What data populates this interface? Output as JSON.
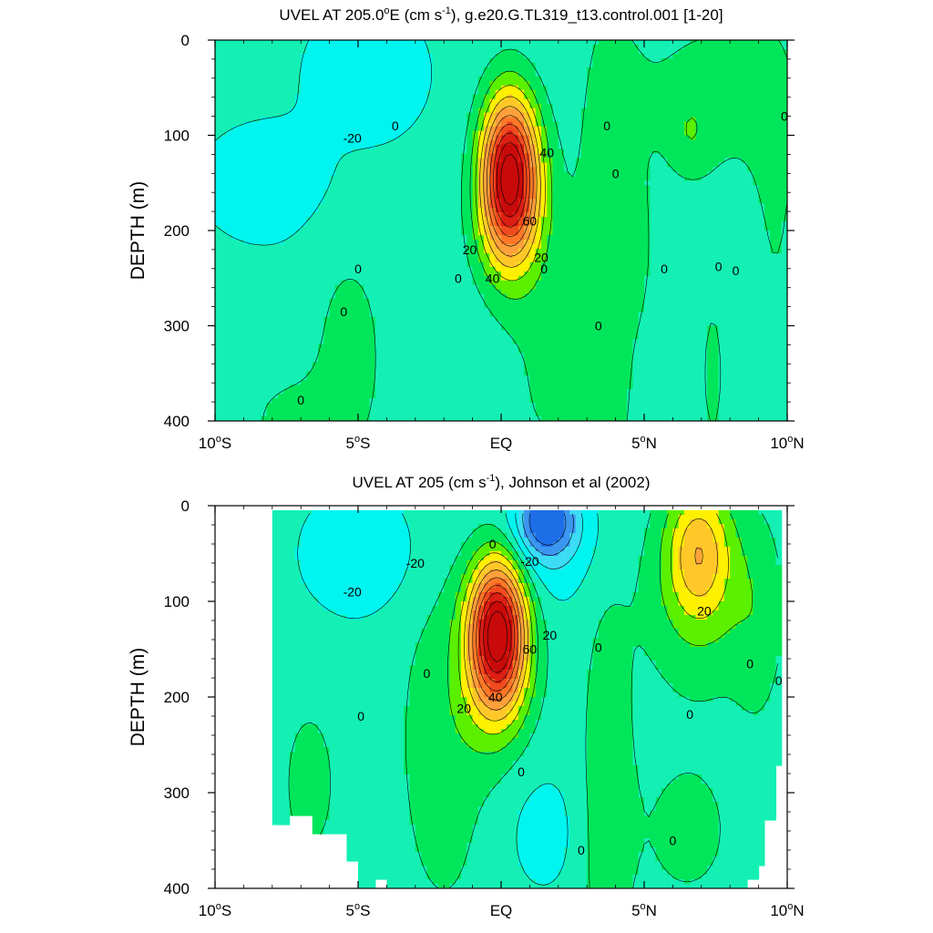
{
  "palette": {
    "neg_40": "#1e6ee8",
    "neg_30": "#3c96f0",
    "neg_20": "#3cdcf5",
    "neg_10": "#00f5f0",
    "zero": "#14f0b4",
    "pos_10": "#00e65a",
    "pos_20": "#5af000",
    "pos_30": "#fff000",
    "pos_40": "#ffc828",
    "pos_50": "#ffa03c",
    "pos_60": "#ff7828",
    "pos_70": "#f04b1e",
    "pos_80": "#dc1e14",
    "pos_90": "#c80a0a"
  },
  "chart_data": [
    {
      "type": "contour",
      "title_main": "UVEL AT 205.0",
      "title_sup": "o",
      "title_rest": "E (cm s",
      "title_sup2": "-1",
      "title_end": "), g.e20.G.TL319_t13.control.001 [1-20]",
      "ylabel": "DEPTH (m)",
      "xlim": [
        -10,
        10
      ],
      "ylim": [
        400,
        0
      ],
      "xticks": [
        {
          "v": -10,
          "main": "10",
          "deg": "o",
          "hemi": "S"
        },
        {
          "v": -5,
          "main": "5",
          "deg": "o",
          "hemi": "S"
        },
        {
          "v": 0,
          "main": "EQ",
          "deg": "",
          "hemi": ""
        },
        {
          "v": 5,
          "main": "5",
          "deg": "o",
          "hemi": "N"
        },
        {
          "v": 10,
          "main": "10",
          "deg": "o",
          "hemi": "N"
        }
      ],
      "yticks": [
        0,
        100,
        200,
        300,
        400
      ],
      "levels": [
        -40,
        -30,
        -20,
        -10,
        0,
        10,
        20,
        30,
        40,
        50,
        60,
        70,
        80,
        90
      ],
      "data_region": [
        {
          "x": -10,
          "top": 0,
          "bottom": 400
        },
        {
          "x": 10,
          "top": 0,
          "bottom": 400
        }
      ],
      "field": [
        {
          "kind": "bg",
          "v": -8
        },
        {
          "kind": "gauss",
          "v": 98,
          "x": 0.3,
          "y": 140,
          "sx": 0.7,
          "sy": 58
        },
        {
          "kind": "gauss",
          "v": 15,
          "x": 0.3,
          "y": 200,
          "sx": 1.0,
          "sy": 55
        },
        {
          "kind": "gauss",
          "v": -12,
          "x": -4.7,
          "y": 35,
          "sx": 1.2,
          "sy": 40
        },
        {
          "kind": "gauss",
          "v": -6,
          "x": -8,
          "y": 150,
          "sx": 1.8,
          "sy": 45
        },
        {
          "kind": "gauss",
          "v": 12,
          "x": -5.3,
          "y": 330,
          "sx": 1.0,
          "sy": 90
        },
        {
          "kind": "gauss",
          "v": 10,
          "x": -7.5,
          "y": 400,
          "sx": 1.2,
          "sy": 40
        },
        {
          "kind": "gauss",
          "v": 12,
          "x": 3.7,
          "y": 250,
          "sx": 1.0,
          "sy": 260
        },
        {
          "kind": "gauss",
          "v": 12,
          "x": 7.5,
          "y": 60,
          "sx": 2.0,
          "sy": 70
        },
        {
          "kind": "gauss",
          "v": 9,
          "x": 6.6,
          "y": 100,
          "sx": 0.5,
          "sy": 30
        },
        {
          "kind": "gauss",
          "v": 9,
          "x": 4.6,
          "y": 220,
          "sx": 0.4,
          "sy": 45
        },
        {
          "kind": "gauss",
          "v": 8,
          "x": 9.6,
          "y": 180,
          "sx": 0.6,
          "sy": 140
        },
        {
          "kind": "gauss",
          "v": 10,
          "x": 7.4,
          "y": 350,
          "sx": 0.4,
          "sy": 80
        },
        {
          "kind": "gauss",
          "v": 8,
          "x": 1.3,
          "y": 350,
          "sx": 1.0,
          "sy": 120
        }
      ],
      "contour_labels": [
        {
          "x": -3.7,
          "y": 90,
          "t": "0"
        },
        {
          "x": 1.6,
          "y": 118,
          "t": "40"
        },
        {
          "x": 3.7,
          "y": 90,
          "t": "0"
        },
        {
          "x": -5.2,
          "y": 103,
          "t": "-20"
        },
        {
          "x": 9.9,
          "y": 80,
          "t": "0"
        },
        {
          "x": 4.0,
          "y": 140,
          "t": "0"
        },
        {
          "x": 1.0,
          "y": 190,
          "t": "60"
        },
        {
          "x": 1.4,
          "y": 228,
          "t": "20"
        },
        {
          "x": -1.1,
          "y": 220,
          "t": "20"
        },
        {
          "x": -0.3,
          "y": 250,
          "t": "40"
        },
        {
          "x": -1.5,
          "y": 250,
          "t": "0"
        },
        {
          "x": -5.0,
          "y": 240,
          "t": "0"
        },
        {
          "x": 1.5,
          "y": 240,
          "t": "0"
        },
        {
          "x": 5.7,
          "y": 240,
          "t": "0"
        },
        {
          "x": 7.6,
          "y": 238,
          "t": "0"
        },
        {
          "x": 8.2,
          "y": 242,
          "t": "0"
        },
        {
          "x": -5.5,
          "y": 285,
          "t": "0"
        },
        {
          "x": 3.4,
          "y": 300,
          "t": "0"
        },
        {
          "x": -7.0,
          "y": 378,
          "t": "0"
        }
      ]
    },
    {
      "type": "contour",
      "title_main": "UVEL AT 205 (cm s",
      "title_sup": "-1",
      "title_rest": "), Johnson et al (2002)",
      "title_sup2": "",
      "title_end": "",
      "ylabel": "DEPTH (m)",
      "xlim": [
        -10,
        10
      ],
      "ylim": [
        400,
        0
      ],
      "xticks": [
        {
          "v": -10,
          "main": "10",
          "deg": "o",
          "hemi": "S"
        },
        {
          "v": -5,
          "main": "5",
          "deg": "o",
          "hemi": "S"
        },
        {
          "v": 0,
          "main": "EQ",
          "deg": "",
          "hemi": ""
        },
        {
          "v": 5,
          "main": "5",
          "deg": "o",
          "hemi": "N"
        },
        {
          "v": 10,
          "main": "10",
          "deg": "o",
          "hemi": "N"
        }
      ],
      "yticks": [
        0,
        100,
        200,
        300,
        400
      ],
      "levels": [
        -40,
        -30,
        -20,
        -10,
        0,
        10,
        20,
        30,
        40,
        50,
        60,
        70,
        80,
        90
      ],
      "data_region": [
        {
          "x": -8,
          "top": 5,
          "bottom": 335
        },
        {
          "x": -7.4,
          "top": 5,
          "bottom": 325
        },
        {
          "x": -6.6,
          "top": 5,
          "bottom": 345
        },
        {
          "x": -5.5,
          "top": 5,
          "bottom": 370
        },
        {
          "x": -5.0,
          "top": 5,
          "bottom": 400
        },
        {
          "x": -4.5,
          "top": 5,
          "bottom": 390
        },
        {
          "x": -4.0,
          "top": 5,
          "bottom": 400
        },
        {
          "x": 7.0,
          "top": 5,
          "bottom": 400
        },
        {
          "x": 8.5,
          "top": 5,
          "bottom": 390
        },
        {
          "x": 9.0,
          "top": 5,
          "bottom": 375
        },
        {
          "x": 9.2,
          "top": 5,
          "bottom": 330
        },
        {
          "x": 9.5,
          "top": 5,
          "bottom": 270
        },
        {
          "x": 9.8,
          "top": 5,
          "bottom": 255
        }
      ],
      "field": [
        {
          "kind": "bg",
          "v": -6
        },
        {
          "kind": "gauss",
          "v": 95,
          "x": -0.1,
          "y": 130,
          "sx": 0.7,
          "sy": 55
        },
        {
          "kind": "gauss",
          "v": 15,
          "x": -0.3,
          "y": 180,
          "sx": 1.0,
          "sy": 60
        },
        {
          "kind": "gauss",
          "v": -38,
          "x": 1.6,
          "y": 15,
          "sx": 0.7,
          "sy": 25
        },
        {
          "kind": "gauss",
          "v": -14,
          "x": 1.3,
          "y": 40,
          "sx": 1.5,
          "sy": 45
        },
        {
          "kind": "gauss",
          "v": -14,
          "x": -4.9,
          "y": 50,
          "sx": 1.4,
          "sy": 45
        },
        {
          "kind": "gauss",
          "v": 36,
          "x": 6.9,
          "y": 45,
          "sx": 0.8,
          "sy": 50
        },
        {
          "kind": "gauss",
          "v": 14,
          "x": 7.0,
          "y": 100,
          "sx": 1.6,
          "sy": 70
        },
        {
          "kind": "gauss",
          "v": 14,
          "x": 3.7,
          "y": 300,
          "sx": 0.6,
          "sy": 140
        },
        {
          "kind": "gauss",
          "v": 10,
          "x": -2.0,
          "y": 250,
          "sx": 1.3,
          "sy": 150
        },
        {
          "kind": "gauss",
          "v": 9,
          "x": -6.7,
          "y": 290,
          "sx": 0.8,
          "sy": 70
        },
        {
          "kind": "gauss",
          "v": 8,
          "x": 6.5,
          "y": 340,
          "sx": 1.5,
          "sy": 70
        },
        {
          "kind": "gauss",
          "v": -8,
          "x": 1.4,
          "y": 340,
          "sx": 1.0,
          "sy": 50
        },
        {
          "kind": "gauss",
          "v": 8,
          "x": 9.0,
          "y": 120,
          "sx": 0.6,
          "sy": 80
        }
      ],
      "contour_labels": [
        {
          "x": -0.3,
          "y": 40,
          "t": "0"
        },
        {
          "x": -3.0,
          "y": 60,
          "t": "-20"
        },
        {
          "x": 1.0,
          "y": 58,
          "t": "-20"
        },
        {
          "x": -5.2,
          "y": 90,
          "t": "-20"
        },
        {
          "x": 1.7,
          "y": 135,
          "t": "20"
        },
        {
          "x": 1.0,
          "y": 150,
          "t": "60"
        },
        {
          "x": 3.4,
          "y": 148,
          "t": "0"
        },
        {
          "x": 7.1,
          "y": 110,
          "t": "20"
        },
        {
          "x": 8.7,
          "y": 165,
          "t": "0"
        },
        {
          "x": 9.7,
          "y": 183,
          "t": "0"
        },
        {
          "x": -2.6,
          "y": 175,
          "t": "0"
        },
        {
          "x": -0.2,
          "y": 200,
          "t": "40"
        },
        {
          "x": -1.3,
          "y": 212,
          "t": "20"
        },
        {
          "x": -4.9,
          "y": 220,
          "t": "0"
        },
        {
          "x": 6.6,
          "y": 218,
          "t": "0"
        },
        {
          "x": 0.7,
          "y": 278,
          "t": "0"
        },
        {
          "x": 2.8,
          "y": 360,
          "t": "0"
        },
        {
          "x": 6.0,
          "y": 350,
          "t": "0"
        }
      ]
    }
  ]
}
